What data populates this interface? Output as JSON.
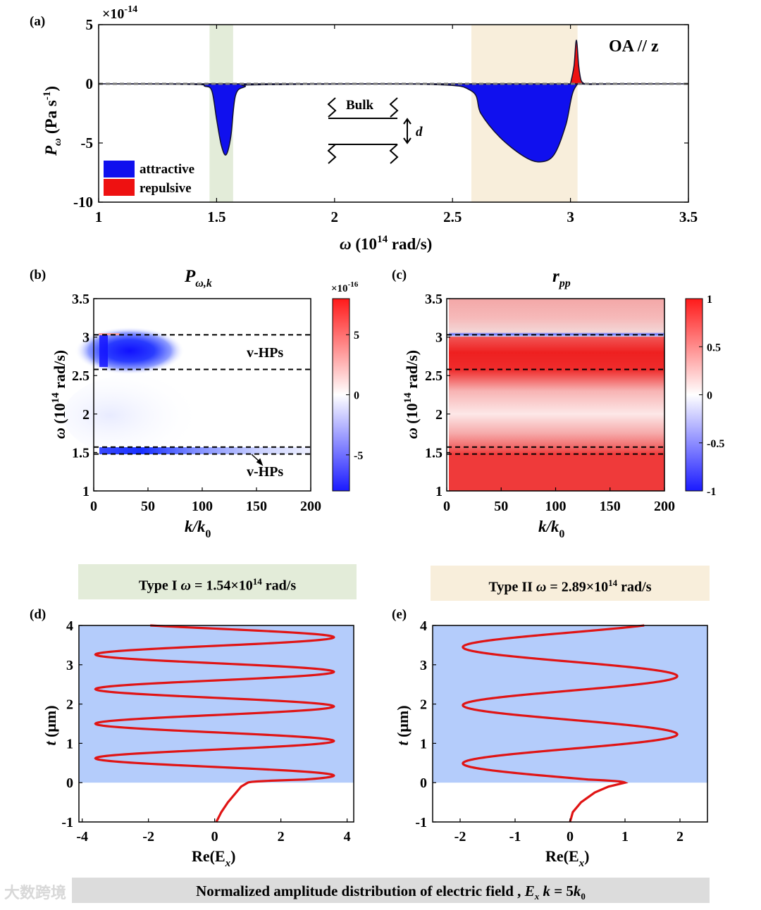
{
  "panels": {
    "a": {
      "label": "(a)",
      "exponent": "×10",
      "exponent_power": "-14",
      "annotation": "OA // z",
      "ylabel_main": "P",
      "ylabel_sub": "ω",
      "ylabel_unit": "(Pa s",
      "ylabel_unit_power": "-1",
      "xlabel_main": "ω (10",
      "xlabel_power": "14",
      "xlabel_unit": " rad/s)",
      "inset_label": "Bulk",
      "inset_gap": "d",
      "legend": [
        {
          "label": "attractive",
          "color": "#1010ee"
        },
        {
          "label": "repulsive",
          "color": "#ee1111"
        }
      ]
    },
    "b": {
      "label": "(b)",
      "title_main": "P",
      "title_sub": "ω,k",
      "exponent": "×10",
      "exponent_power": "-16",
      "annotation_upper": "v-HPs",
      "annotation_lower": "v-HPs",
      "ylabel_main": "ω (10",
      "ylabel_power": "14",
      "ylabel_unit": " rad/s)",
      "xlabel_main": "k/k",
      "xlabel_sub": "0"
    },
    "c": {
      "label": "(c)",
      "title_main": "r",
      "title_sub": "pp",
      "ylabel_main": "ω (10",
      "ylabel_power": "14",
      "ylabel_unit": " rad/s)",
      "xlabel_main": "k/k",
      "xlabel_sub": "0"
    },
    "d": {
      "label": "(d)",
      "ylabel_main": "t",
      "ylabel_unit": " (μm)",
      "xlabel_main": "Re(E",
      "xlabel_sub": "x",
      "xlabel_end": ")"
    },
    "e": {
      "label": "(e)",
      "ylabel_main": "t",
      "ylabel_unit": " (μm)",
      "xlabel_main": "Re(E",
      "xlabel_sub": "x",
      "xlabel_end": ")"
    }
  },
  "type_bars": {
    "type1": {
      "prefix": "Type I   ",
      "omega": "ω",
      "value": " = 1.54×10",
      "power": "14",
      "unit": " rad/s",
      "color": "#e3ecd9"
    },
    "type2": {
      "prefix": "Type II   ",
      "omega": "ω",
      "value": " = 2.89×10",
      "power": "14",
      "unit": " rad/s",
      "color": "#f8eedb"
    }
  },
  "bottom_bar": {
    "text": "Normalized amplitude distribution of electric field , ",
    "field": "E",
    "field_sub": "x",
    "k_text": "  k",
    "eq": " = 5",
    "k0": "k",
    "k0_sub": "0",
    "color": "#dcdcdc"
  },
  "watermark": "大数跨境",
  "chart_data": [
    {
      "id": "a",
      "type": "area",
      "title": "",
      "xlabel": "ω (10^14 rad/s)",
      "ylabel": "P_ω (Pa s^-1)",
      "xlim": [
        1,
        3.5
      ],
      "ylim": [
        -10,
        5
      ],
      "y_scale_factor": "1e-14",
      "xticks": [
        "1",
        "1.5",
        "2",
        "2.5",
        "3",
        "3.5"
      ],
      "yticks": [
        "5",
        "0",
        "-5",
        "-10"
      ],
      "highlight_bands": [
        {
          "range": [
            1.47,
            1.57
          ],
          "color": "#e3ecd9"
        },
        {
          "range": [
            2.58,
            3.03
          ],
          "color": "#f8eedb"
        }
      ],
      "series": [
        {
          "name": "attractive",
          "color": "#1010ee",
          "x": [
            1.0,
            1.4,
            1.45,
            1.48,
            1.5,
            1.52,
            1.54,
            1.56,
            1.58,
            1.62,
            1.68,
            2.4,
            2.58,
            2.62,
            2.7,
            2.8,
            2.87,
            2.93,
            2.98,
            3.02,
            3.1,
            3.5
          ],
          "y": [
            0,
            -0.05,
            -0.2,
            -0.6,
            -3.0,
            -5.2,
            -6.0,
            -4.5,
            -1.0,
            -0.25,
            -0.08,
            -0.05,
            -0.6,
            -2.5,
            -4.5,
            -6.1,
            -6.6,
            -6.0,
            -3.5,
            -0.3,
            -0.05,
            0
          ]
        },
        {
          "name": "repulsive",
          "color": "#ee1111",
          "x": [
            3.0,
            3.015,
            3.025,
            3.035,
            3.045,
            3.06
          ],
          "y": [
            0,
            1.5,
            3.7,
            1.5,
            0.3,
            0
          ]
        }
      ]
    },
    {
      "id": "b",
      "type": "heatmap",
      "title": "P_ω,k",
      "xlabel": "k/k_0",
      "ylabel": "ω (10^14 rad/s)",
      "xlim": [
        0,
        200
      ],
      "ylim": [
        1,
        3.5
      ],
      "xticks": [
        "0",
        "50",
        "100",
        "150",
        "200"
      ],
      "yticks": [
        "1",
        "1.5",
        "2",
        "2.5",
        "3",
        "3.5"
      ],
      "colorbar": {
        "range": [
          -8,
          8
        ],
        "ticks": [
          "5",
          "0",
          "-5"
        ],
        "scale_factor": "1e-16"
      },
      "dashed_lines_omega": [
        3.03,
        2.58,
        1.57,
        1.48
      ],
      "features": [
        {
          "band": [
            2.58,
            3.03
          ],
          "k_peak": 25,
          "value": -8
        },
        {
          "band": [
            1.48,
            1.57
          ],
          "k_peak": 30,
          "value": -6
        }
      ]
    },
    {
      "id": "c",
      "type": "heatmap",
      "title": "r_pp",
      "xlabel": "k/k_0",
      "ylabel": "ω (10^14 rad/s)",
      "xlim": [
        0,
        200
      ],
      "ylim": [
        1,
        3.5
      ],
      "xticks": [
        "0",
        "50",
        "100",
        "150",
        "200"
      ],
      "yticks": [
        "1",
        "1.5",
        "2",
        "2.5",
        "3",
        "3.5"
      ],
      "colorbar": {
        "range": [
          -1,
          1
        ],
        "ticks": [
          "1",
          "0.5",
          "0",
          "-0.5",
          "-1"
        ]
      },
      "dashed_lines_omega": [
        3.03,
        2.58,
        1.57,
        1.48
      ],
      "omega_profile": [
        [
          1.0,
          0.85
        ],
        [
          1.47,
          0.85
        ],
        [
          1.57,
          0.85
        ],
        [
          1.7,
          0.7
        ],
        [
          2.0,
          0.15
        ],
        [
          2.3,
          0.6
        ],
        [
          2.58,
          0.95
        ],
        [
          2.8,
          0.95
        ],
        [
          3.0,
          0.7
        ],
        [
          3.03,
          -0.9
        ],
        [
          3.06,
          0.3
        ],
        [
          3.3,
          0.4
        ],
        [
          3.5,
          0.35
        ]
      ]
    },
    {
      "id": "d",
      "type": "line",
      "xlabel": "Re(E_x)",
      "ylabel": "t (μm)",
      "xlim": [
        -4.1,
        4.2
      ],
      "ylim": [
        -1,
        4
      ],
      "xticks": [
        "-4",
        "-2",
        "0",
        "2",
        "4"
      ],
      "yticks": [
        "4",
        "3",
        "2",
        "1",
        "0",
        "-1"
      ],
      "slab_range_t": [
        0,
        4
      ],
      "inside": {
        "amplitude": 3.6,
        "wavelength": 0.88,
        "t_first_peak": 0.18,
        "t_end": 4.0
      },
      "outside": {
        "t": [
          -1,
          -0.75,
          -0.5,
          -0.25,
          -0.1,
          0
        ],
        "x": [
          0.05,
          0.2,
          0.4,
          0.65,
          0.8,
          1.0
        ]
      }
    },
    {
      "id": "e",
      "type": "line",
      "xlabel": "Re(E_x)",
      "ylabel": "t (μm)",
      "xlim": [
        -2.5,
        2.5
      ],
      "ylim": [
        -1,
        4
      ],
      "xticks": [
        "-2",
        "-1",
        "0",
        "1",
        "2"
      ],
      "yticks": [
        "4",
        "3",
        "2",
        "1",
        "0",
        "-1"
      ],
      "slab_range_t": [
        0,
        4
      ],
      "inside": {
        "amplitude": 1.95,
        "wavelength": 1.48,
        "t_first_peak": -0.25,
        "t_end": 4.0
      },
      "outside": {
        "t": [
          -1,
          -0.75,
          -0.5,
          -0.25,
          -0.1,
          0
        ],
        "x": [
          0.0,
          0.05,
          0.2,
          0.45,
          0.7,
          1.0
        ]
      }
    }
  ]
}
